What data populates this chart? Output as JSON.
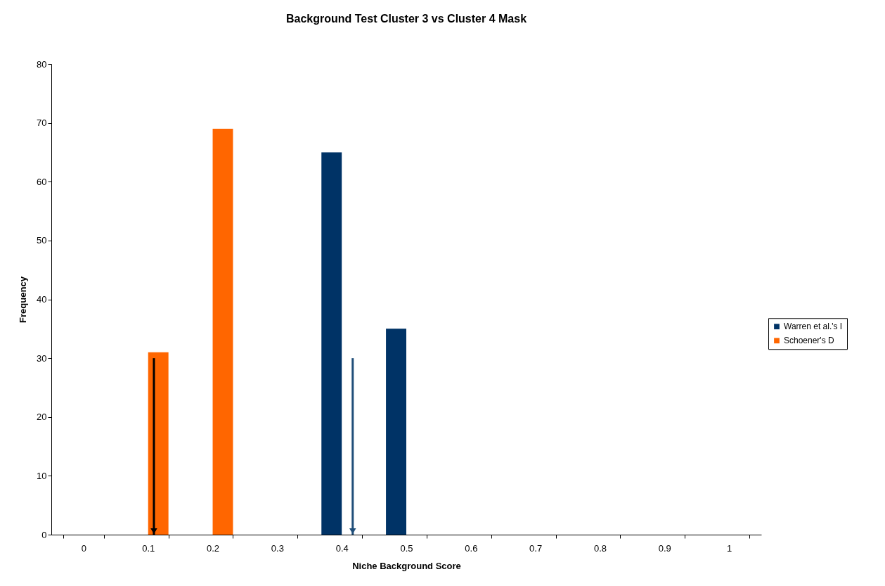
{
  "chart_data": {
    "type": "bar",
    "title": "Background Test Cluster 3 vs Cluster 4 Mask",
    "xlabel": "Niche Background  Score",
    "ylabel": "Frequency",
    "categories": [
      "0",
      "0.1",
      "0.2",
      "0.3",
      "0.4",
      "0.5",
      "0.6",
      "0.7",
      "0.8",
      "0.9",
      "1"
    ],
    "series": [
      {
        "name": "Warren et al.'s I",
        "color": "#003366",
        "values": [
          0,
          0,
          0,
          0,
          65,
          35,
          0,
          0,
          0,
          0,
          0
        ]
      },
      {
        "name": "Schoener's D",
        "color": "#ff6600",
        "values": [
          0,
          31,
          69,
          0,
          0,
          0,
          0,
          0,
          0,
          0,
          0
        ]
      }
    ],
    "ylim": [
      0,
      80
    ],
    "yticks": [
      0,
      10,
      20,
      30,
      40,
      50,
      60,
      70,
      80
    ],
    "grid": false,
    "legend": "right"
  }
}
